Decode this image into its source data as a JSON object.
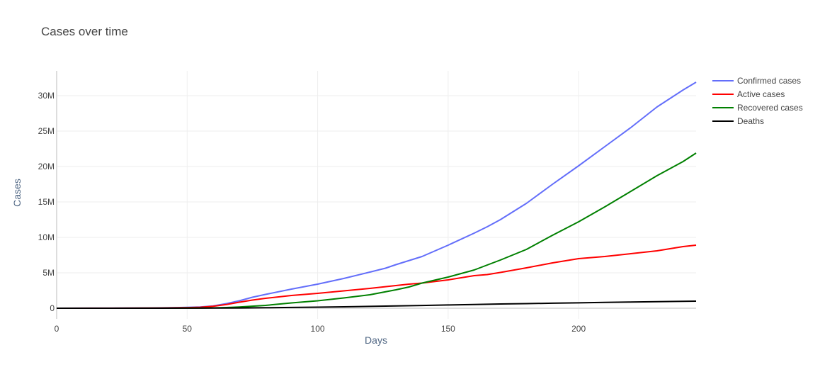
{
  "chart_data": {
    "type": "line",
    "title": "Cases over time",
    "xlabel": "Days",
    "ylabel": "Cases",
    "xlim": [
      0,
      245
    ],
    "ylim": [
      -1500000,
      33500000
    ],
    "x_ticks": [
      0,
      50,
      100,
      150,
      200
    ],
    "y_ticks": [
      0,
      5000000,
      10000000,
      15000000,
      20000000,
      25000000,
      30000000
    ],
    "y_tick_labels": [
      "0",
      "5M",
      "10M",
      "15M",
      "20M",
      "25M",
      "30M"
    ],
    "grid": true,
    "legend_position": "top-right",
    "series": [
      {
        "name": "Confirmed cases",
        "color": "#636efa",
        "x": [
          0,
          20,
          40,
          50,
          55,
          60,
          65,
          70,
          75,
          80,
          90,
          100,
          110,
          120,
          126,
          130,
          140,
          150,
          160,
          165,
          170,
          180,
          190,
          200,
          210,
          220,
          230,
          240,
          245
        ],
        "y": [
          0,
          10000,
          60000,
          120000,
          180000,
          330000,
          650000,
          1050000,
          1550000,
          1950000,
          2700000,
          3400000,
          4200000,
          5100000,
          5650000,
          6150000,
          7300000,
          8900000,
          10600000,
          11500000,
          12500000,
          14800000,
          17500000,
          20100000,
          22800000,
          25500000,
          28400000,
          30800000,
          31900000
        ]
      },
      {
        "name": "Active cases",
        "color": "#ff0000",
        "x": [
          0,
          20,
          40,
          50,
          55,
          60,
          65,
          70,
          75,
          80,
          90,
          100,
          110,
          120,
          130,
          135,
          140,
          150,
          160,
          165,
          170,
          180,
          190,
          200,
          210,
          220,
          230,
          240,
          245
        ],
        "y": [
          0,
          8000,
          40000,
          90000,
          140000,
          280000,
          520000,
          850000,
          1150000,
          1400000,
          1800000,
          2100000,
          2450000,
          2800000,
          3200000,
          3400000,
          3550000,
          4000000,
          4600000,
          4750000,
          5050000,
          5700000,
          6400000,
          7000000,
          7300000,
          7700000,
          8100000,
          8700000,
          8900000
        ]
      },
      {
        "name": "Recovered cases",
        "color": "#008000",
        "x": [
          0,
          20,
          40,
          50,
          55,
          60,
          65,
          70,
          80,
          90,
          100,
          110,
          120,
          130,
          135,
          140,
          150,
          155,
          160,
          165,
          170,
          180,
          190,
          200,
          210,
          220,
          230,
          240,
          245
        ],
        "y": [
          0,
          0,
          10000,
          20000,
          30000,
          50000,
          100000,
          180000,
          400000,
          750000,
          1050000,
          1450000,
          1900000,
          2600000,
          3000000,
          3550000,
          4400000,
          4900000,
          5400000,
          6100000,
          6800000,
          8300000,
          10300000,
          12200000,
          14300000,
          16500000,
          18700000,
          20700000,
          21900000
        ]
      },
      {
        "name": "Deaths",
        "color": "#000000",
        "x": [
          0,
          40,
          50,
          60,
          70,
          80,
          90,
          100,
          110,
          120,
          130,
          140,
          150,
          160,
          170,
          180,
          190,
          200,
          210,
          220,
          230,
          240,
          245
        ],
        "y": [
          0,
          3000,
          10000,
          20000,
          45000,
          75000,
          110000,
          150000,
          200000,
          255000,
          320000,
          390000,
          460000,
          530000,
          600000,
          650000,
          710000,
          760000,
          820000,
          870000,
          920000,
          970000,
          1000000
        ]
      }
    ]
  }
}
